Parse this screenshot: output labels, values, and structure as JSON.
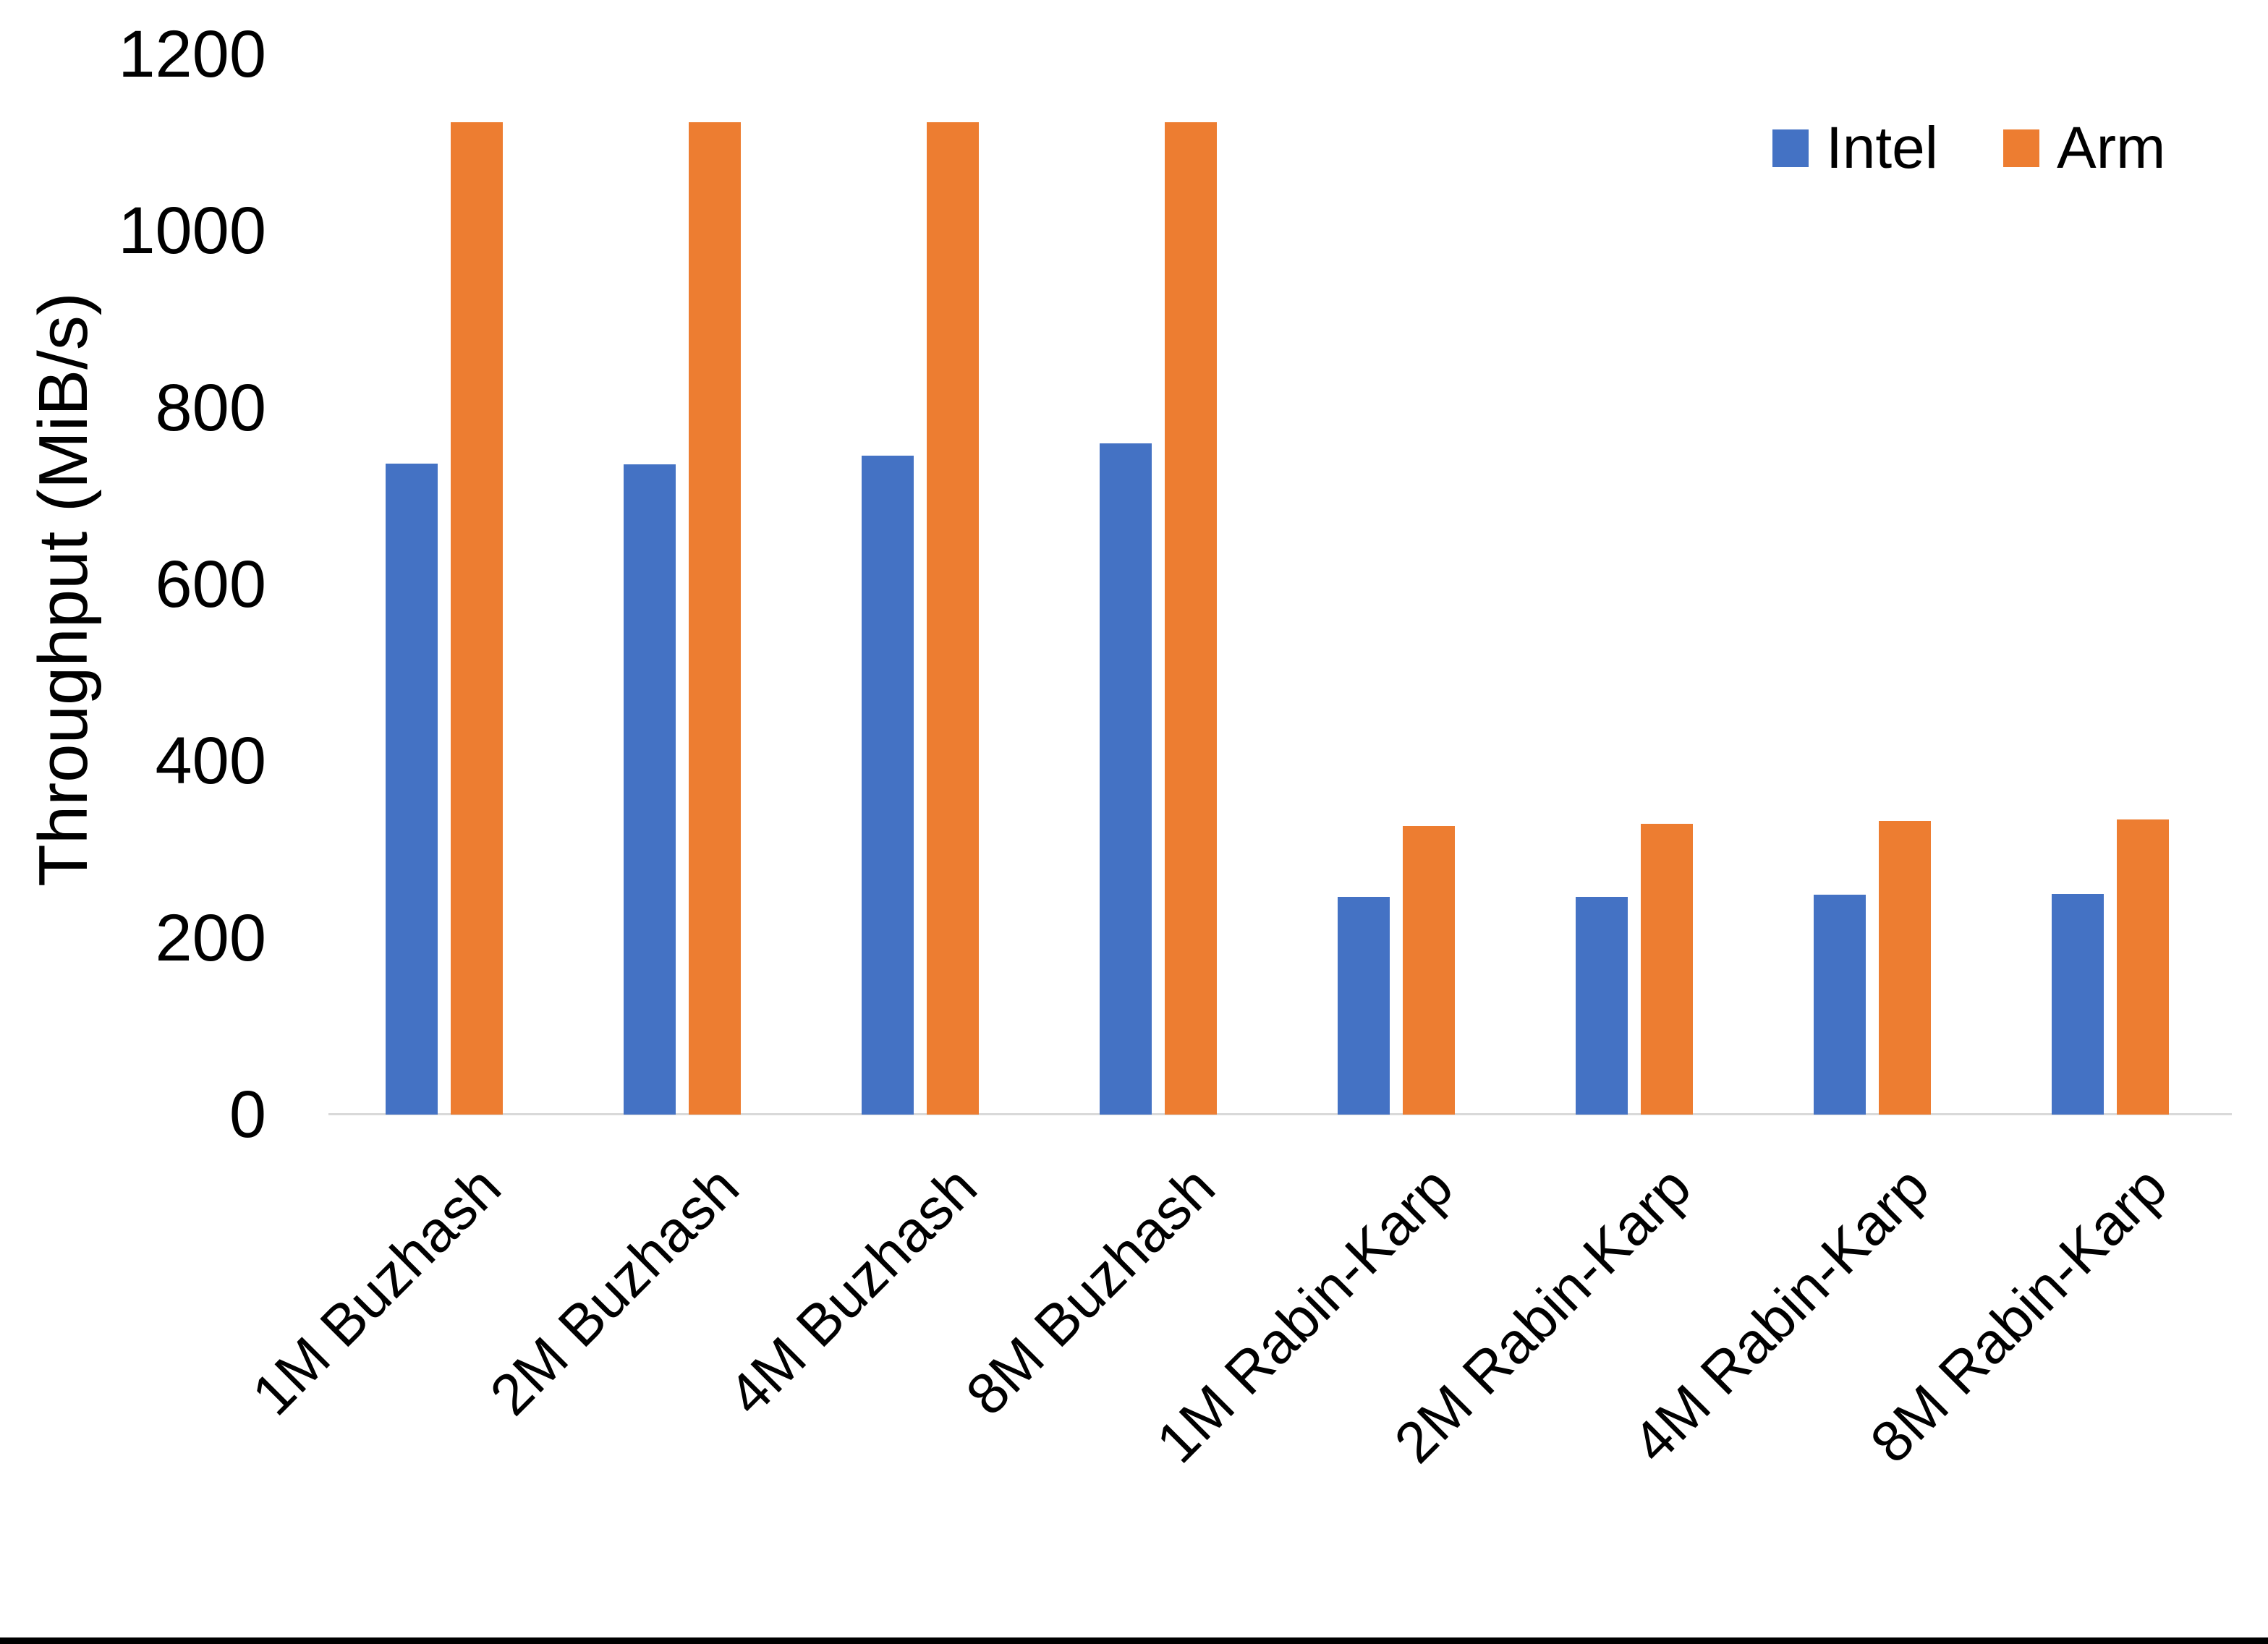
{
  "chart_data": {
    "type": "bar",
    "title": "",
    "xlabel": "",
    "ylabel": "Throughput (MiB/s)",
    "ylim": [
      0,
      1200
    ],
    "yticks": [
      0,
      200,
      400,
      600,
      800,
      1000,
      1200
    ],
    "grid": false,
    "legend_position": "top-right",
    "categories": [
      "1M Buzhash",
      "2M Buzhash",
      "4M Buzhash",
      "8M Buzhash",
      "1M Rabin-Karp",
      "2M Rabin-Karp",
      "4M Rabin-Karp",
      "8M Rabin-Karp"
    ],
    "series": [
      {
        "name": "Intel",
        "color": "#4472C4",
        "values": [
          737,
          736,
          746,
          760,
          246,
          246,
          249,
          250
        ]
      },
      {
        "name": "Arm",
        "color": "#ED7D31",
        "values": [
          1123,
          1123,
          1123,
          1123,
          327,
          329,
          332,
          334
        ]
      }
    ]
  },
  "colors": {
    "background": "#FFFFFF",
    "axis_line": "#D9D9D9",
    "text": "#000000",
    "bottom_border": "#000000"
  }
}
